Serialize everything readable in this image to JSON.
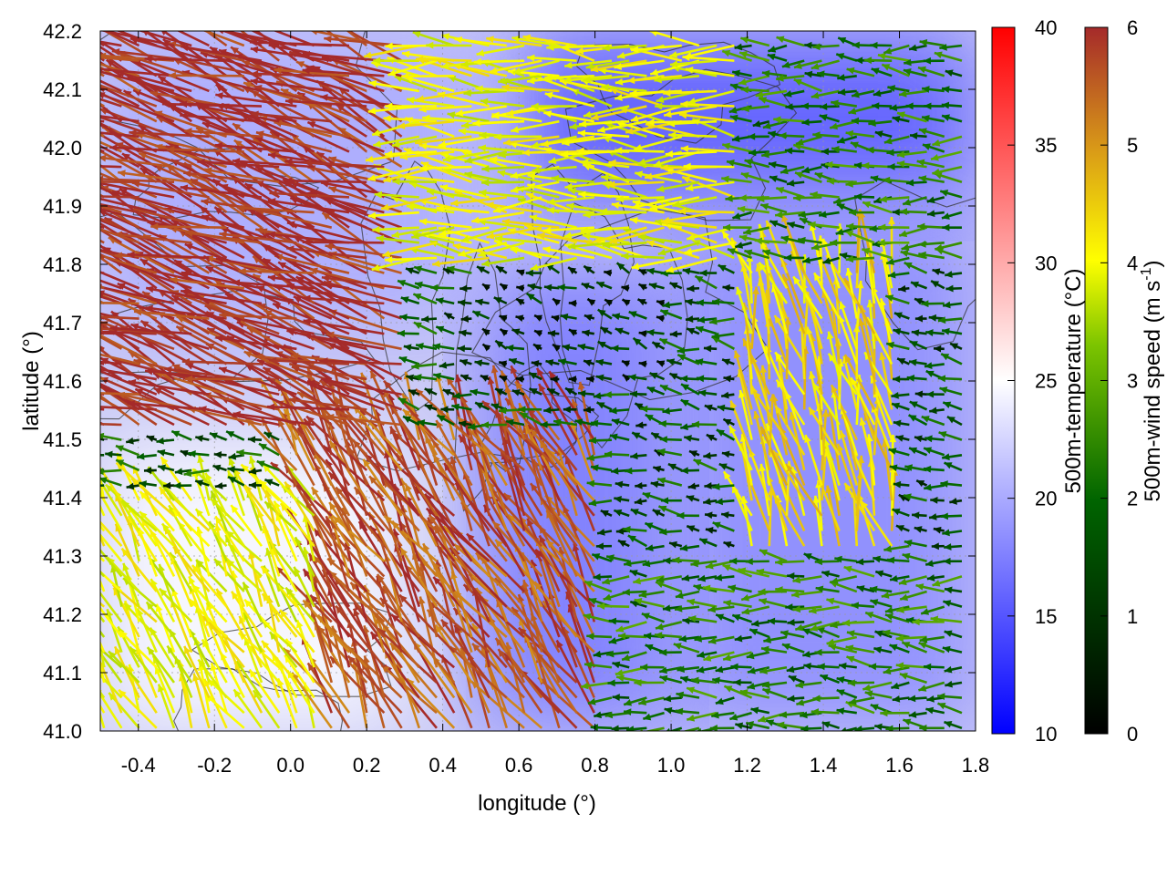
{
  "chart_data": {
    "type": "heatmap",
    "subtype": "vector-field-over-temperature-map-with-contours",
    "xlabel": "longitude (°)",
    "ylabel": "latitude (°)",
    "xlim": [
      -0.5,
      1.8
    ],
    "ylim": [
      41.0,
      42.2
    ],
    "x_ticks": [
      {
        "value": -0.4,
        "label": "-0.4"
      },
      {
        "value": -0.2,
        "label": "-0.2"
      },
      {
        "value": 0.0,
        "label": "0.0"
      },
      {
        "value": 0.2,
        "label": "0.2"
      },
      {
        "value": 0.4,
        "label": "0.4"
      },
      {
        "value": 0.6,
        "label": "0.6"
      },
      {
        "value": 0.8,
        "label": "0.8"
      },
      {
        "value": 1.0,
        "label": "1.0"
      },
      {
        "value": 1.2,
        "label": "1.2"
      },
      {
        "value": 1.4,
        "label": "1.4"
      },
      {
        "value": 1.6,
        "label": "1.6"
      },
      {
        "value": 1.8,
        "label": "1.8"
      }
    ],
    "y_ticks": [
      {
        "value": 41.0,
        "label": "41.0"
      },
      {
        "value": 41.1,
        "label": "41.1"
      },
      {
        "value": 41.2,
        "label": "41.2"
      },
      {
        "value": 41.3,
        "label": "41.3"
      },
      {
        "value": 41.4,
        "label": "41.4"
      },
      {
        "value": 41.5,
        "label": "41.5"
      },
      {
        "value": 41.6,
        "label": "41.6"
      },
      {
        "value": 41.7,
        "label": "41.7"
      },
      {
        "value": 41.8,
        "label": "41.8"
      },
      {
        "value": 41.9,
        "label": "41.9"
      },
      {
        "value": 42.0,
        "label": "42.0"
      },
      {
        "value": 42.1,
        "label": "42.1"
      },
      {
        "value": 42.2,
        "label": "42.2"
      }
    ],
    "grid": true,
    "temperature_colorbar": {
      "label": "500m-temperature (°C)",
      "range": [
        10,
        40
      ],
      "ticks": [
        {
          "value": 10,
          "label": "10"
        },
        {
          "value": 15,
          "label": "15"
        },
        {
          "value": 20,
          "label": "20"
        },
        {
          "value": 25,
          "label": "25"
        },
        {
          "value": 30,
          "label": "30"
        },
        {
          "value": 35,
          "label": "35"
        },
        {
          "value": 40,
          "label": "40"
        }
      ],
      "colors": [
        "#0000ff",
        "#ffffff",
        "#ff0000"
      ]
    },
    "wind_colorbar": {
      "label_main": "500m-wind speed (m s",
      "label_sup": "-1",
      "label_end": ")",
      "range": [
        0,
        6
      ],
      "ticks": [
        {
          "value": 0,
          "label": "0"
        },
        {
          "value": 1,
          "label": "1"
        },
        {
          "value": 2,
          "label": "2"
        },
        {
          "value": 3,
          "label": "3"
        },
        {
          "value": 4,
          "label": "4"
        },
        {
          "value": 5,
          "label": "5"
        },
        {
          "value": 6,
          "label": "6"
        }
      ],
      "colors": [
        "#000000",
        "#006400",
        "#7cc400",
        "#ffff00",
        "#d89818",
        "#a52a2a"
      ]
    },
    "temperature_field_regions": [
      {
        "region": "north-east",
        "lon": [
          0.6,
          1.8
        ],
        "lat": [
          41.9,
          42.2
        ],
        "temp_c": 15
      },
      {
        "region": "east",
        "lon": [
          1.0,
          1.8
        ],
        "lat": [
          41.0,
          41.9
        ],
        "temp_c": 18
      },
      {
        "region": "central-east",
        "lon": [
          0.5,
          1.0
        ],
        "lat": [
          41.0,
          41.8
        ],
        "temp_c": 17
      },
      {
        "region": "north-west",
        "lon": [
          -0.5,
          0.5
        ],
        "lat": [
          41.7,
          42.2
        ],
        "temp_c": 20
      },
      {
        "region": "south-west",
        "lon": [
          -0.5,
          0.3
        ],
        "lat": [
          41.0,
          41.5
        ],
        "temp_c": 25
      }
    ],
    "wind_field_regions": [
      {
        "region": "north-west",
        "lon": [
          -0.5,
          0.3
        ],
        "lat": [
          41.5,
          42.2
        ],
        "speed_ms": 6.0,
        "direction": "toward west-north-west"
      },
      {
        "region": "south-west",
        "lon": [
          -0.5,
          0.1
        ],
        "lat": [
          41.0,
          41.4
        ],
        "speed_ms": 3.5,
        "direction": "toward north-west"
      },
      {
        "region": "south-central",
        "lon": [
          0.0,
          0.8
        ],
        "lat": [
          41.0,
          41.5
        ],
        "speed_ms": 5.5,
        "direction": "toward north-west"
      },
      {
        "region": "north-central",
        "lon": [
          0.3,
          1.2
        ],
        "lat": [
          41.8,
          42.2
        ],
        "speed_ms": 3.5,
        "direction": "toward west"
      },
      {
        "region": "central",
        "lon": [
          0.5,
          1.0
        ],
        "lat": [
          41.6,
          41.8
        ],
        "speed_ms": 0.5,
        "direction": "calm"
      },
      {
        "region": "east-central",
        "lon": [
          1.2,
          1.6
        ],
        "lat": [
          41.3,
          41.8
        ],
        "speed_ms": 4.0,
        "direction": "toward north-north-west"
      },
      {
        "region": "south-east",
        "lon": [
          0.8,
          1.8
        ],
        "lat": [
          41.0,
          41.3
        ],
        "speed_ms": 1.5,
        "direction": "toward west"
      },
      {
        "region": "north-east",
        "lon": [
          1.2,
          1.8
        ],
        "lat": [
          41.8,
          42.2
        ],
        "speed_ms": 1.5,
        "direction": "toward west"
      }
    ]
  }
}
